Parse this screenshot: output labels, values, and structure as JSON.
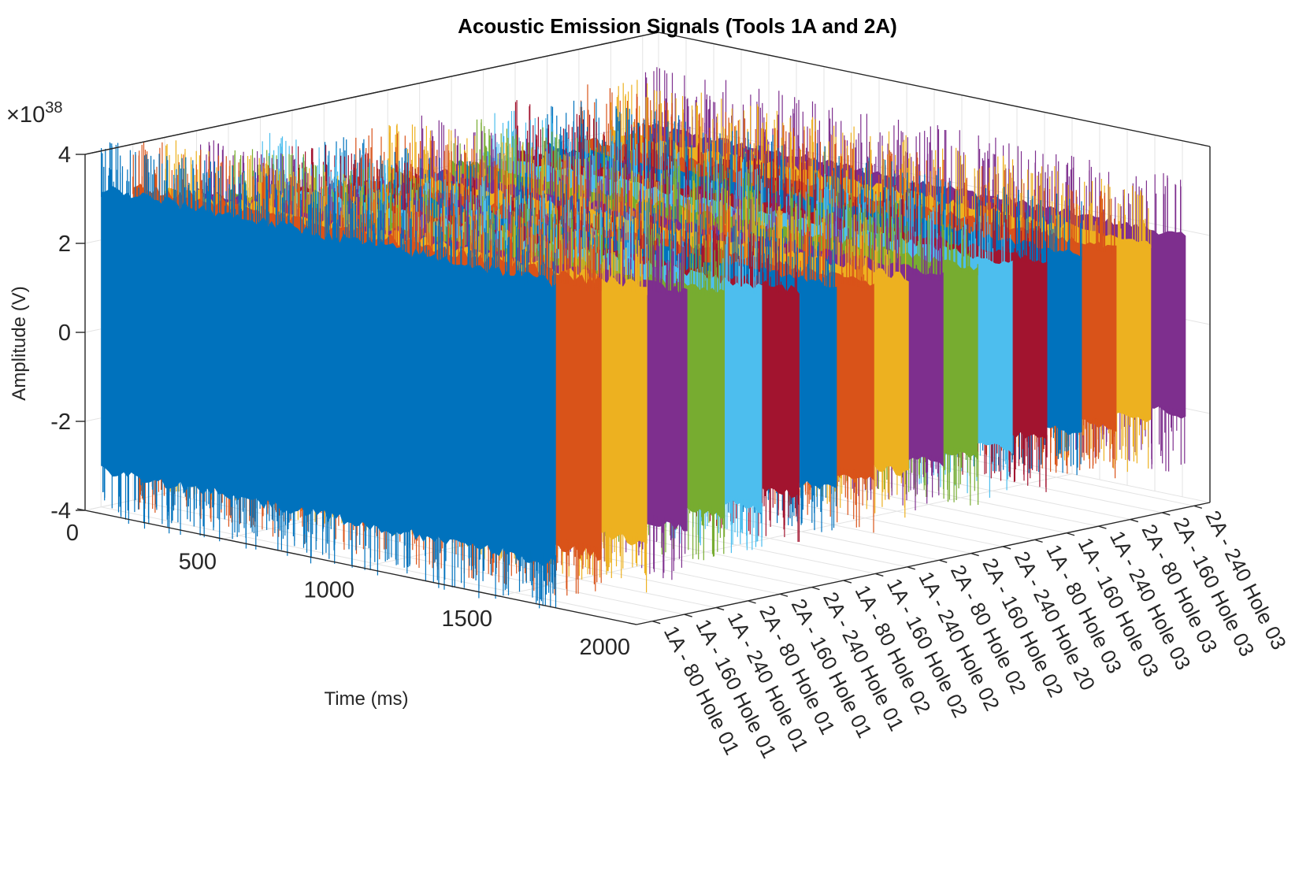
{
  "chart_data": {
    "type": "line",
    "subtype": "3d-waterfall",
    "title": "Acoustic Emission Signals (Tools 1A and 2A)",
    "xlabel": "Time (ms)",
    "ylabel": "",
    "zlabel": "Amplitude (V)",
    "z_exponent_label": "×10",
    "z_exponent_value": "38",
    "x_ticks": [
      "0",
      "500",
      "1000",
      "1500",
      "2000"
    ],
    "x_range": [
      0,
      2000
    ],
    "z_ticks": [
      "4",
      "2",
      "0",
      "-2",
      "-4"
    ],
    "z_range": [
      -4,
      4
    ],
    "grid": true,
    "series": [
      {
        "label": "1A - 80 Hole 01",
        "color": "#0072BD",
        "duration_ms": 1650,
        "amplitude": 3.3,
        "edge": 1.0
      },
      {
        "label": "1A - 160 Hole 01",
        "color": "#D95319",
        "duration_ms": 1700,
        "amplitude": 3.2,
        "edge": 1.0
      },
      {
        "label": "1A - 240 Hole 01",
        "color": "#EDB120",
        "duration_ms": 1750,
        "amplitude": 3.0,
        "edge": 1.0
      },
      {
        "label": "2A - 80 Hole 01",
        "color": "#7E2F8E",
        "duration_ms": 1780,
        "amplitude": 2.8,
        "edge": 1.1
      },
      {
        "label": "2A - 160 Hole 01",
        "color": "#77AC30",
        "duration_ms": 1800,
        "amplitude": 2.6,
        "edge": 1.1
      },
      {
        "label": "2A - 240 Hole 01",
        "color": "#4DBEEE",
        "duration_ms": 1820,
        "amplitude": 2.6,
        "edge": 1.1
      },
      {
        "label": "1A - 80 Hole 02",
        "color": "#A2142F",
        "duration_ms": 1840,
        "amplitude": 2.4,
        "edge": 1.0
      },
      {
        "label": "1A - 160 Hole 02",
        "color": "#0072BD",
        "duration_ms": 1860,
        "amplitude": 2.4,
        "edge": 1.0
      },
      {
        "label": "1A - 240 Hole 02",
        "color": "#D95319",
        "duration_ms": 1880,
        "amplitude": 2.3,
        "edge": 1.1
      },
      {
        "label": "2A - 80 Hole 02",
        "color": "#EDB120",
        "duration_ms": 1890,
        "amplitude": 2.3,
        "edge": 1.1
      },
      {
        "label": "2A - 160 Hole 02",
        "color": "#7E2F8E",
        "duration_ms": 1900,
        "amplitude": 2.2,
        "edge": 1.1
      },
      {
        "label": "2A - 240 Hole 20",
        "color": "#77AC30",
        "duration_ms": 1910,
        "amplitude": 2.2,
        "edge": 1.1
      },
      {
        "label": "1A - 80 Hole 03",
        "color": "#4DBEEE",
        "duration_ms": 1920,
        "amplitude": 2.2,
        "edge": 1.1
      },
      {
        "label": "1A - 160 Hole 03",
        "color": "#A2142F",
        "duration_ms": 1930,
        "amplitude": 2.1,
        "edge": 1.1
      },
      {
        "label": "1A - 240 Hole 03",
        "color": "#0072BD",
        "duration_ms": 1940,
        "amplitude": 2.1,
        "edge": 1.2
      },
      {
        "label": "2A - 80 Hole 03",
        "color": "#D95319",
        "duration_ms": 1950,
        "amplitude": 2.1,
        "edge": 1.2
      },
      {
        "label": "2A - 160 Hole 03",
        "color": "#EDB120",
        "duration_ms": 1960,
        "amplitude": 2.1,
        "edge": 1.2
      },
      {
        "label": "2A - 240 Hole 03",
        "color": "#7E2F8E",
        "duration_ms": 1970,
        "amplitude": 2.1,
        "edge": 1.3
      }
    ]
  }
}
